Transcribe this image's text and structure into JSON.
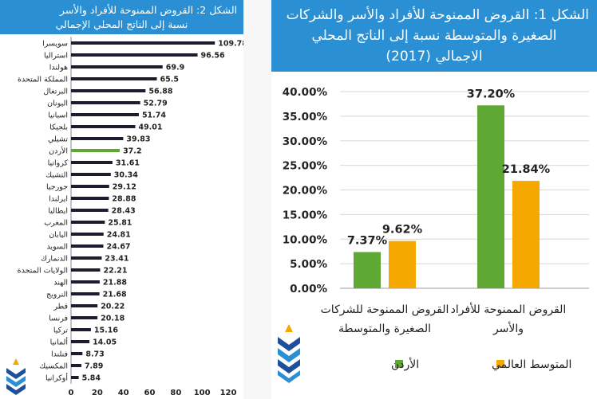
{
  "left_panel": {
    "title_line1": "الشكل 2: القروض الممنوحة للأفراد والأسر",
    "title_line2": "نسبة إلى الناتج المحلي الإجمالي"
  },
  "right_panel": {
    "title_line1": "الشكل 1: القروض الممنوحة للأفراد والأسر والشركات",
    "title_line2": "الصغيرة والمتوسطة نسبة إلى الناتج المحلي",
    "title_line3": "الاجمالي (2017)"
  },
  "colors": {
    "header_blue": "#2b8fd3",
    "bar_dark": "#1c1c2e",
    "bar_green": "#5fa833",
    "bar_orange": "#f5a800",
    "grid": "#d8d8d8"
  },
  "chart_data": [
    {
      "type": "bar",
      "orientation": "horizontal",
      "categories": [
        "سويسرا",
        "استراليا",
        "هولندا",
        "المملكة المتحدة",
        "البرتغال",
        "اليونان",
        "اسبانيا",
        "بلجيكا",
        "تشيلي",
        "الأردن",
        "كرواتيا",
        "التشيك",
        "جورجيا",
        "ايرلندا",
        "ايطاليا",
        "المغرب",
        "اليابان",
        "السويد",
        "الدنمارك",
        "الولايات المتحدة",
        "الهند",
        "النرويج",
        "قطر",
        "فرنسا",
        "تركيا",
        "ألمانيا",
        "فنلندا",
        "المكسيك",
        "أوكرانيا"
      ],
      "values": [
        109.78,
        96.56,
        69.9,
        65.5,
        56.88,
        52.79,
        51.74,
        49.01,
        39.83,
        37.2,
        31.61,
        30.34,
        29.12,
        28.88,
        28.43,
        25.81,
        24.81,
        24.67,
        23.41,
        22.21,
        21.88,
        21.68,
        20.22,
        20.18,
        15.16,
        14.05,
        8.73,
        7.89,
        5.84
      ],
      "value_labels": [
        "109.78",
        "96.56",
        "69.9",
        "65.5",
        "56.88",
        "52.79",
        "51.74",
        "49.01",
        "39.83",
        "37.2",
        "31.61",
        "30.34",
        "29.12",
        "28.88",
        "28.43",
        "25.81",
        "24.81",
        "24.67",
        "23.41",
        "22.21",
        "21.88",
        "21.68",
        "20.22",
        "20.18",
        "15.16",
        "14.05",
        "8.73",
        "7.89",
        "5.84"
      ],
      "highlight": "الأردن",
      "xlim": [
        0,
        120
      ],
      "xticks": [
        "0",
        "20",
        "40",
        "60",
        "80",
        "100",
        "120"
      ]
    },
    {
      "type": "bar",
      "categories": [
        {
          "line1": "القروض الممنوحة للأفراد",
          "line2": "والأسر"
        },
        {
          "line1": "القروض الممنوحة للشركات",
          "line2": "الصغيرة والمتوسطة"
        }
      ],
      "series": [
        {
          "name": "الأردن",
          "values": [
            37.2,
            7.37
          ],
          "labels": [
            "37.20%",
            "7.37%"
          ]
        },
        {
          "name": "المتوسط العالمي",
          "values": [
            21.84,
            9.62
          ],
          "labels": [
            "21.84%",
            "9.62%"
          ]
        }
      ],
      "ylim": [
        0,
        40
      ],
      "yticks": [
        "0.00%",
        "5.00%",
        "10.00%",
        "15.00%",
        "20.00%",
        "25.00%",
        "30.00%",
        "35.00%",
        "40.00%"
      ],
      "grid": true,
      "legend": "bottom"
    }
  ]
}
